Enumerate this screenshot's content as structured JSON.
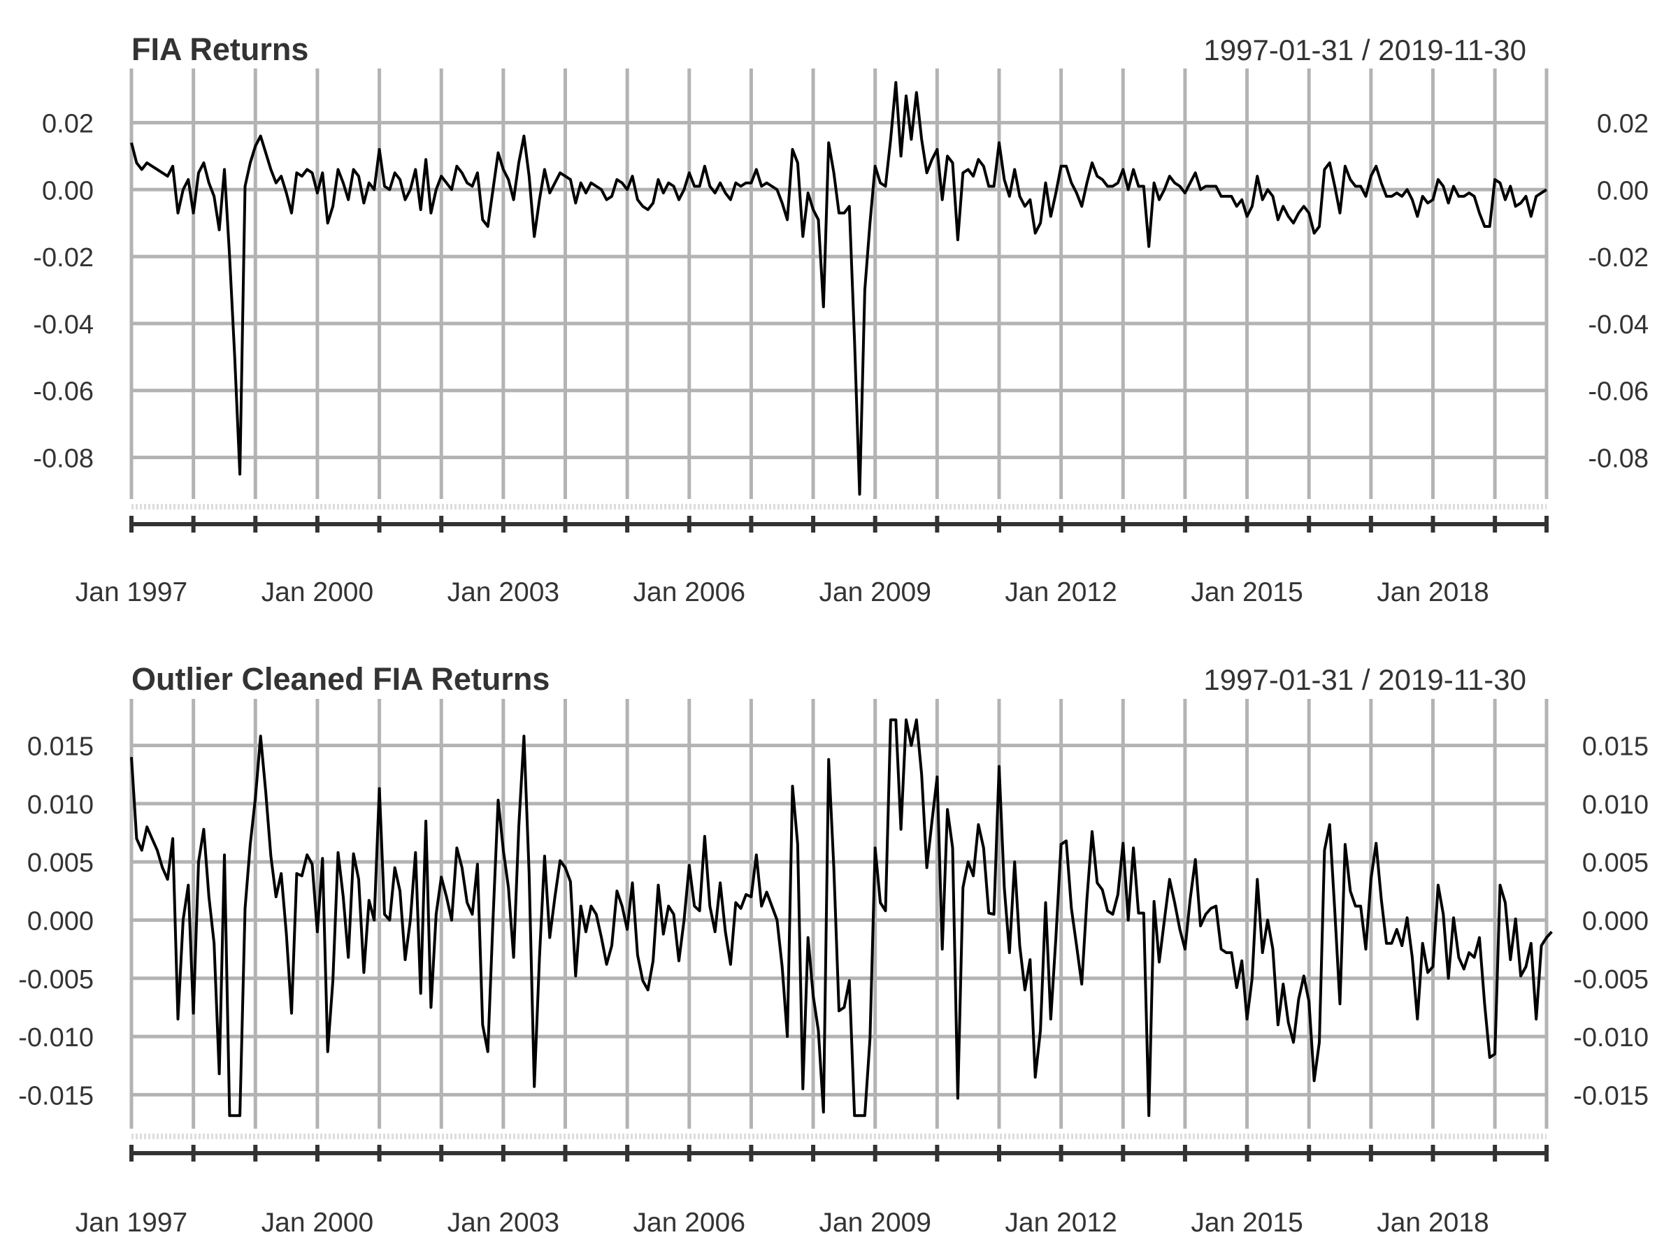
{
  "chart_data": [
    {
      "type": "line",
      "title": "FIA Returns",
      "date_range": "1997-01-31 / 2019-11-30",
      "xlabel": "",
      "ylabel": "",
      "x_ticks": [
        "Jan 1997",
        "Jan 2000",
        "Jan 2003",
        "Jan 2006",
        "Jan 2009",
        "Jan 2012",
        "Jan 2015",
        "Jan 2018"
      ],
      "y_ticks": [
        "0.02",
        "0.00",
        "-0.02",
        "-0.04",
        "-0.06",
        "-0.08"
      ],
      "y_tick_values": [
        0.02,
        0.0,
        -0.02,
        -0.04,
        -0.06,
        -0.08
      ],
      "ylim": [
        -0.092,
        0.032
      ],
      "start": "1997-01",
      "end": "2019-11",
      "series": [
        {
          "name": "FIA Returns",
          "color": "#000000",
          "values": [
            0.014,
            0.008,
            0.006,
            0.008,
            0.007,
            0.006,
            0.005,
            0.004,
            0.007,
            -0.007,
            0.0,
            0.003,
            -0.007,
            0.005,
            0.008,
            0.002,
            -0.002,
            -0.012,
            0.006,
            -0.02,
            -0.05,
            -0.085,
            0.001,
            0.008,
            0.013,
            0.016,
            0.011,
            0.006,
            0.002,
            0.004,
            -0.001,
            -0.007,
            0.005,
            0.004,
            0.006,
            0.005,
            -0.001,
            0.005,
            -0.01,
            -0.005,
            0.006,
            0.002,
            -0.003,
            0.006,
            0.004,
            -0.004,
            0.002,
            0.0,
            0.012,
            0.001,
            0.0,
            0.005,
            0.003,
            -0.003,
            0.0,
            0.006,
            -0.006,
            0.009,
            -0.007,
            0.0,
            0.004,
            0.002,
            0.0,
            0.007,
            0.005,
            0.002,
            0.001,
            0.005,
            -0.009,
            -0.011,
            0.0,
            0.011,
            0.006,
            0.003,
            -0.003,
            0.008,
            0.016,
            0.004,
            -0.014,
            -0.003,
            0.006,
            -0.001,
            0.002,
            0.005,
            0.004,
            0.003,
            -0.004,
            0.002,
            -0.001,
            0.002,
            0.001,
            0.0,
            -0.003,
            -0.002,
            0.003,
            0.002,
            0.0,
            0.004,
            -0.003,
            -0.005,
            -0.006,
            -0.004,
            0.003,
            -0.001,
            0.002,
            0.001,
            -0.003,
            0.0,
            0.005,
            0.001,
            0.001,
            0.007,
            0.001,
            -0.001,
            0.002,
            -0.001,
            -0.003,
            0.002,
            0.001,
            0.002,
            0.002,
            0.006,
            0.001,
            0.002,
            0.001,
            0.0,
            -0.004,
            -0.009,
            0.012,
            0.008,
            -0.014,
            -0.001,
            -0.006,
            -0.009,
            -0.035,
            0.014,
            0.005,
            -0.007,
            -0.007,
            -0.005,
            -0.045,
            -0.091,
            -0.03,
            -0.01,
            0.007,
            0.002,
            0.001,
            0.015,
            0.032,
            0.01,
            0.028,
            0.015,
            0.029,
            0.015,
            0.005,
            0.009,
            0.012,
            -0.003,
            0.01,
            0.008,
            -0.015,
            0.005,
            0.006,
            0.004,
            0.009,
            0.007,
            0.001,
            0.001,
            0.014,
            0.003,
            -0.002,
            0.006,
            -0.002,
            -0.005,
            -0.003,
            -0.013,
            -0.01,
            0.002,
            -0.008,
            -0.001,
            0.007,
            0.007,
            0.002,
            -0.001,
            -0.005,
            0.002,
            0.008,
            0.004,
            0.003,
            0.001,
            0.001,
            0.002,
            0.006,
            0.0,
            0.006,
            0.001,
            0.001,
            -0.017,
            0.002,
            -0.003,
            0.0,
            0.004,
            0.002,
            0.001,
            -0.001,
            0.002,
            0.005,
            0.0,
            0.001,
            0.001,
            0.001,
            -0.002,
            -0.002,
            -0.002,
            -0.005,
            -0.003,
            -0.008,
            -0.005,
            0.004,
            -0.003,
            0.0,
            -0.002,
            -0.009,
            -0.005,
            -0.008,
            -0.01,
            -0.007,
            -0.005,
            -0.007,
            -0.013,
            -0.011,
            0.006,
            0.008,
            0.001,
            -0.007,
            0.007,
            0.003,
            0.001,
            0.001,
            -0.002,
            0.004,
            0.007,
            0.002,
            -0.002,
            -0.002,
            -0.001,
            -0.002,
            0.0,
            -0.003,
            -0.008,
            -0.002,
            -0.004,
            -0.003,
            0.003,
            0.001,
            -0.004,
            0.001,
            -0.002,
            -0.002,
            -0.001,
            -0.002,
            -0.007,
            -0.011,
            -0.011,
            0.003,
            0.002,
            -0.003,
            0.001,
            -0.005,
            -0.004,
            -0.002,
            -0.008,
            -0.002,
            -0.001,
            0.0
          ]
        }
      ]
    },
    {
      "type": "line",
      "title": "Outlier Cleaned FIA Returns",
      "date_range": "1997-01-31 / 2019-11-30",
      "xlabel": "",
      "ylabel": "",
      "x_ticks": [
        "Jan 1997",
        "Jan 2000",
        "Jan 2003",
        "Jan 2006",
        "Jan 2009",
        "Jan 2012",
        "Jan 2015",
        "Jan 2018"
      ],
      "y_ticks": [
        "0.015",
        "0.010",
        "0.005",
        "0.000",
        "-0.005",
        "-0.010",
        "-0.015"
      ],
      "y_tick_values": [
        0.015,
        0.01,
        0.005,
        0.0,
        -0.005,
        -0.01,
        -0.015
      ],
      "ylim": [
        -0.0178,
        0.0178
      ],
      "start": "1997-01",
      "end": "2019-11",
      "series": [
        {
          "name": "Outlier Cleaned FIA Returns",
          "color": "#000000",
          "values": [
            0.014,
            0.007,
            0.006,
            0.008,
            0.007,
            0.006,
            0.0045,
            0.0035,
            0.007,
            -0.0085,
            0.0,
            0.003,
            -0.008,
            0.005,
            0.0078,
            0.002,
            -0.002,
            -0.0132,
            0.0056,
            -0.0168,
            -0.0168,
            -0.0168,
            0.001,
            0.0065,
            0.0105,
            0.0158,
            0.011,
            0.0055,
            0.002,
            0.004,
            -0.0012,
            -0.008,
            0.004,
            0.0038,
            0.0056,
            0.0048,
            -0.001,
            0.0053,
            -0.0113,
            -0.0052,
            0.0058,
            0.002,
            -0.0032,
            0.0057,
            0.0035,
            -0.0045,
            0.0017,
            0.0,
            0.0113,
            0.0005,
            0.0,
            0.0045,
            0.0025,
            -0.0034,
            0.0,
            0.0058,
            -0.0063,
            0.0085,
            -0.0075,
            0.0005,
            0.0037,
            0.002,
            0.0,
            0.0062,
            0.0045,
            0.0015,
            0.0005,
            0.0048,
            -0.009,
            -0.0113,
            0.0,
            0.0103,
            0.006,
            0.0028,
            -0.0032,
            0.008,
            0.0158,
            0.004,
            -0.0143,
            -0.0032,
            0.0055,
            -0.0015,
            0.002,
            0.0051,
            0.0045,
            0.0033,
            -0.0048,
            0.0012,
            -0.001,
            0.0012,
            0.0005,
            -0.0015,
            -0.0038,
            -0.0022,
            0.0025,
            0.0012,
            -0.0008,
            0.0032,
            -0.003,
            -0.0052,
            -0.006,
            -0.0035,
            0.003,
            -0.0012,
            0.0012,
            0.0005,
            -0.0035,
            0.0,
            0.0047,
            0.0012,
            0.0008,
            0.0072,
            0.0012,
            -0.001,
            0.0032,
            -0.001,
            -0.0038,
            0.0015,
            0.001,
            0.0022,
            0.002,
            0.0056,
            0.0012,
            0.0024,
            0.0012,
            0.0,
            -0.004,
            -0.01,
            0.0115,
            0.0065,
            -0.0145,
            -0.0015,
            -0.0065,
            -0.0095,
            -0.0165,
            0.0138,
            0.0045,
            -0.0078,
            -0.0075,
            -0.0052,
            -0.0168,
            -0.0168,
            -0.0168,
            -0.0102,
            0.0062,
            0.0015,
            0.0008,
            0.0172,
            0.0172,
            0.0078,
            0.0172,
            0.015,
            0.0172,
            0.0125,
            0.0045,
            0.0085,
            0.0123,
            -0.0025,
            0.0095,
            0.0062,
            -0.0153,
            0.0028,
            0.005,
            0.0038,
            0.0082,
            0.0062,
            0.0006,
            0.0005,
            0.0132,
            0.0028,
            -0.0028,
            0.005,
            -0.0022,
            -0.006,
            -0.0034,
            -0.0135,
            -0.0095,
            0.0015,
            -0.0085,
            -0.0015,
            0.0065,
            0.0068,
            0.001,
            -0.0022,
            -0.0055,
            0.0018,
            0.0076,
            0.0032,
            0.0026,
            0.0008,
            0.0005,
            0.0022,
            0.0066,
            0.0,
            0.0062,
            0.0006,
            0.0006,
            -0.0168,
            0.0016,
            -0.0036,
            0.0,
            0.0035,
            0.0015,
            -0.0008,
            -0.0025,
            0.0018,
            0.0052,
            -0.0005,
            0.0005,
            0.001,
            0.0012,
            -0.0025,
            -0.0028,
            -0.0028,
            -0.0058,
            -0.0035,
            -0.0085,
            -0.005,
            0.0035,
            -0.0028,
            0.0,
            -0.0025,
            -0.009,
            -0.0055,
            -0.0088,
            -0.0105,
            -0.0068,
            -0.0048,
            -0.007,
            -0.0138,
            -0.0105,
            0.006,
            0.0082,
            0.0008,
            -0.0072,
            0.0065,
            0.0025,
            0.0012,
            0.0012,
            -0.0025,
            0.0035,
            0.0066,
            0.0018,
            -0.002,
            -0.002,
            -0.0008,
            -0.0022,
            0.0002,
            -0.0032,
            -0.0085,
            -0.002,
            -0.0045,
            -0.004,
            0.003,
            0.0005,
            -0.005,
            0.0002,
            -0.0032,
            -0.0042,
            -0.0028,
            -0.0032,
            -0.0015,
            -0.0072,
            -0.0118,
            -0.0115,
            0.003,
            0.0015,
            -0.0034,
            0.0001,
            -0.0048,
            -0.004,
            -0.002,
            -0.0085,
            -0.0022,
            -0.0015,
            -0.001
          ]
        }
      ]
    }
  ]
}
